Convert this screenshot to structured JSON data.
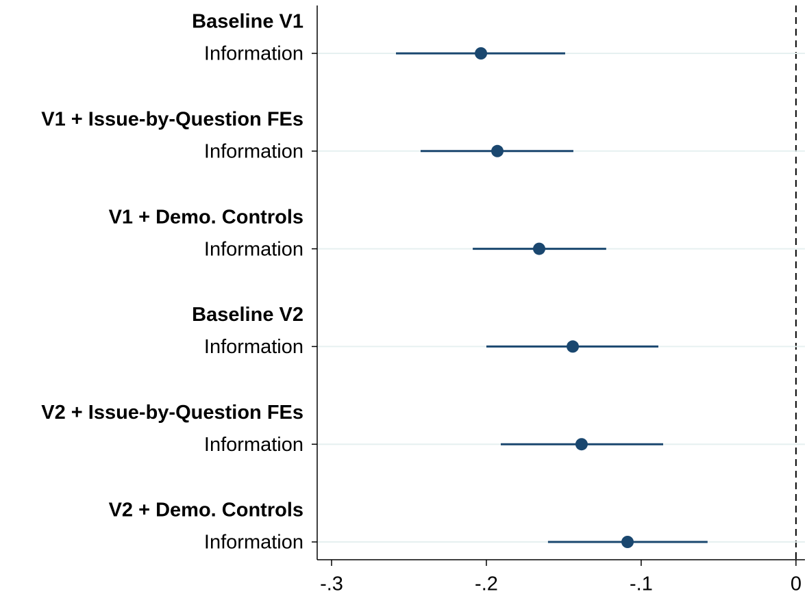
{
  "chart_data": {
    "type": "coefplot",
    "groups": [
      {
        "title": "Baseline V1",
        "term": "Information",
        "estimate": -0.2035,
        "lower": -0.2584,
        "upper": -0.1491
      },
      {
        "title": "V1 + Issue-by-Question FEs",
        "term": "Information",
        "estimate": -0.1929,
        "lower": -0.2425,
        "upper": -0.1438
      },
      {
        "title": "V1 + Demo. Controls",
        "term": "Information",
        "estimate": -0.1659,
        "lower": -0.2088,
        "upper": -0.1226
      },
      {
        "title": "Baseline V2",
        "term": "Information",
        "estimate": -0.1442,
        "lower": -0.2,
        "upper": -0.0889
      },
      {
        "title": "V2 + Issue-by-Question FEs",
        "term": "Information",
        "estimate": -0.1385,
        "lower": -0.1907,
        "upper": -0.0858
      },
      {
        "title": "V2 + Demo. Controls",
        "term": "Information",
        "estimate": -0.1088,
        "lower": -0.1602,
        "upper": -0.0571
      }
    ],
    "color": "#1a476f",
    "xlim": [
      -0.3093,
      0.0058
    ],
    "xticks": [
      {
        "value": -0.3,
        "label": "-.3"
      },
      {
        "value": -0.2,
        "label": "-.2"
      },
      {
        "value": -0.1,
        "label": "-.1"
      },
      0
    ],
    "xline": 0,
    "grid": true
  }
}
